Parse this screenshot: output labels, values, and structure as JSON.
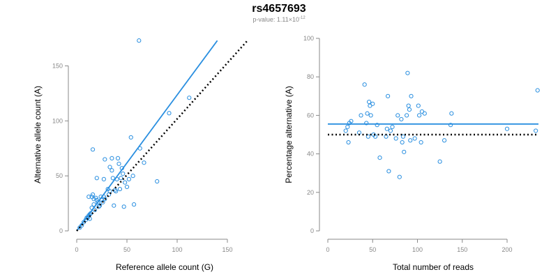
{
  "title": "rs4657693",
  "subtitle": {
    "prefix": "p-value: 1.11×10",
    "exponent": "-12"
  },
  "colors": {
    "accent": "#2a8fe0",
    "reference": "#000000",
    "axis": "#888888"
  },
  "chart_data": [
    {
      "type": "scatter",
      "xlabel": "Reference allele count (G)",
      "ylabel": "Alternative allele count (A)",
      "xlim": [
        0,
        175
      ],
      "ylim": [
        0,
        175
      ],
      "xticks": [
        0,
        50,
        100,
        150
      ],
      "yticks": [
        0,
        50,
        100,
        150
      ],
      "grid": false,
      "points": [
        {
          "x": 3,
          "y": 3
        },
        {
          "x": 5,
          "y": 5
        },
        {
          "x": 7,
          "y": 8
        },
        {
          "x": 9,
          "y": 10
        },
        {
          "x": 10,
          "y": 12
        },
        {
          "x": 11,
          "y": 12
        },
        {
          "x": 12,
          "y": 14
        },
        {
          "x": 13,
          "y": 15
        },
        {
          "x": 13,
          "y": 11
        },
        {
          "x": 14,
          "y": 16
        },
        {
          "x": 15,
          "y": 21
        },
        {
          "x": 17,
          "y": 24
        },
        {
          "x": 18,
          "y": 19
        },
        {
          "x": 19,
          "y": 30
        },
        {
          "x": 20,
          "y": 28
        },
        {
          "x": 21,
          "y": 26
        },
        {
          "x": 22,
          "y": 22
        },
        {
          "x": 23,
          "y": 23
        },
        {
          "x": 24,
          "y": 31
        },
        {
          "x": 25,
          "y": 28
        },
        {
          "x": 26,
          "y": 26
        },
        {
          "x": 27,
          "y": 31
        },
        {
          "x": 28,
          "y": 29
        },
        {
          "x": 12,
          "y": 31
        },
        {
          "x": 15,
          "y": 31
        },
        {
          "x": 16,
          "y": 33
        },
        {
          "x": 17,
          "y": 29
        },
        {
          "x": 16,
          "y": 74
        },
        {
          "x": 20,
          "y": 48
        },
        {
          "x": 27,
          "y": 47
        },
        {
          "x": 28,
          "y": 65
        },
        {
          "x": 31,
          "y": 38
        },
        {
          "x": 32,
          "y": 33
        },
        {
          "x": 33,
          "y": 36
        },
        {
          "x": 33,
          "y": 58
        },
        {
          "x": 35,
          "y": 55
        },
        {
          "x": 35,
          "y": 66
        },
        {
          "x": 36,
          "y": 48
        },
        {
          "x": 37,
          "y": 23
        },
        {
          "x": 38,
          "y": 37
        },
        {
          "x": 39,
          "y": 36
        },
        {
          "x": 40,
          "y": 47
        },
        {
          "x": 41,
          "y": 66
        },
        {
          "x": 42,
          "y": 61
        },
        {
          "x": 43,
          "y": 38
        },
        {
          "x": 44,
          "y": 48
        },
        {
          "x": 45,
          "y": 57
        },
        {
          "x": 46,
          "y": 52
        },
        {
          "x": 47,
          "y": 22
        },
        {
          "x": 48,
          "y": 44
        },
        {
          "x": 50,
          "y": 40
        },
        {
          "x": 52,
          "y": 47
        },
        {
          "x": 54,
          "y": 85
        },
        {
          "x": 56,
          "y": 50
        },
        {
          "x": 57,
          "y": 24
        },
        {
          "x": 62,
          "y": 173
        },
        {
          "x": 63,
          "y": 75
        },
        {
          "x": 67,
          "y": 62
        },
        {
          "x": 80,
          "y": 45
        },
        {
          "x": 92,
          "y": 107
        },
        {
          "x": 112,
          "y": 121
        }
      ],
      "lines": [
        {
          "style": "solid",
          "color": "accent",
          "from": [
            0,
            0
          ],
          "to": [
            140,
            173
          ]
        },
        {
          "style": "dotted",
          "color": "reference",
          "from": [
            0,
            0
          ],
          "to": [
            170,
            173
          ]
        }
      ]
    },
    {
      "type": "scatter",
      "xlabel": "Total number of reads",
      "ylabel": "Percentage alternative (A)",
      "xlim": [
        0,
        235
      ],
      "ylim": [
        0,
        100
      ],
      "xticks": [
        0,
        50,
        100,
        150,
        200
      ],
      "yticks": [
        0,
        20,
        40,
        60,
        80,
        100
      ],
      "grid": false,
      "points": [
        {
          "x": 20,
          "y": 52
        },
        {
          "x": 22,
          "y": 54
        },
        {
          "x": 23,
          "y": 46
        },
        {
          "x": 24,
          "y": 56
        },
        {
          "x": 26,
          "y": 57
        },
        {
          "x": 35,
          "y": 51
        },
        {
          "x": 37,
          "y": 60
        },
        {
          "x": 41,
          "y": 76
        },
        {
          "x": 43,
          "y": 56
        },
        {
          "x": 44,
          "y": 61
        },
        {
          "x": 45,
          "y": 49
        },
        {
          "x": 46,
          "y": 67
        },
        {
          "x": 47,
          "y": 65
        },
        {
          "x": 48,
          "y": 60
        },
        {
          "x": 50,
          "y": 66
        },
        {
          "x": 51,
          "y": 50
        },
        {
          "x": 53,
          "y": 49
        },
        {
          "x": 55,
          "y": 55
        },
        {
          "x": 58,
          "y": 38
        },
        {
          "x": 65,
          "y": 49
        },
        {
          "x": 66,
          "y": 53
        },
        {
          "x": 67,
          "y": 70
        },
        {
          "x": 68,
          "y": 31
        },
        {
          "x": 70,
          "y": 52
        },
        {
          "x": 72,
          "y": 54
        },
        {
          "x": 76,
          "y": 48
        },
        {
          "x": 78,
          "y": 60
        },
        {
          "x": 80,
          "y": 28
        },
        {
          "x": 82,
          "y": 58
        },
        {
          "x": 83,
          "y": 46
        },
        {
          "x": 84,
          "y": 49
        },
        {
          "x": 85,
          "y": 41
        },
        {
          "x": 88,
          "y": 60
        },
        {
          "x": 89,
          "y": 82
        },
        {
          "x": 90,
          "y": 65
        },
        {
          "x": 91,
          "y": 63
        },
        {
          "x": 92,
          "y": 47
        },
        {
          "x": 93,
          "y": 70
        },
        {
          "x": 97,
          "y": 48
        },
        {
          "x": 101,
          "y": 65
        },
        {
          "x": 102,
          "y": 60
        },
        {
          "x": 104,
          "y": 46
        },
        {
          "x": 105,
          "y": 62
        },
        {
          "x": 108,
          "y": 61
        },
        {
          "x": 125,
          "y": 36
        },
        {
          "x": 130,
          "y": 47
        },
        {
          "x": 137,
          "y": 55
        },
        {
          "x": 138,
          "y": 61
        },
        {
          "x": 200,
          "y": 53
        },
        {
          "x": 232,
          "y": 52
        },
        {
          "x": 234,
          "y": 73
        }
      ],
      "lines": [
        {
          "style": "solid",
          "color": "accent",
          "from": [
            0,
            55.5
          ],
          "to": [
            235,
            55.5
          ]
        },
        {
          "style": "dotted",
          "color": "reference",
          "from": [
            0,
            50
          ],
          "to": [
            235,
            50
          ]
        }
      ]
    }
  ]
}
